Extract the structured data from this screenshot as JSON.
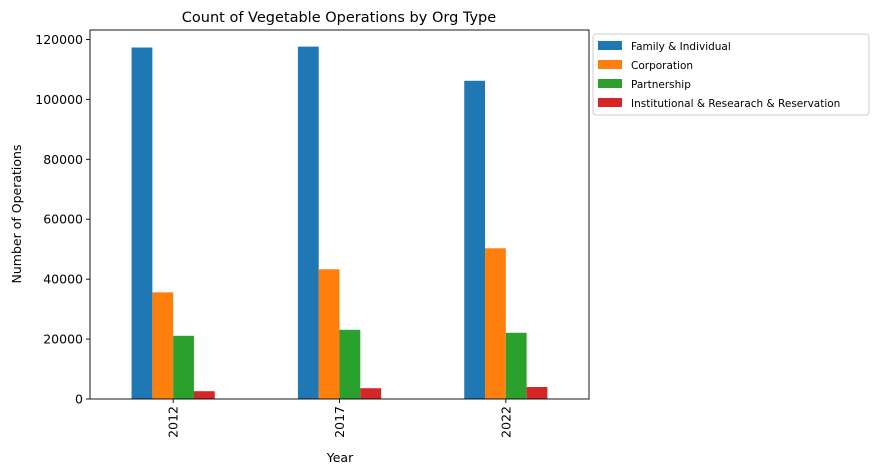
{
  "chart_data": {
    "type": "bar",
    "title": "Count of Vegetable Operations by Org Type",
    "xlabel": "Year",
    "ylabel": "Number of Operations",
    "categories": [
      "2012",
      "2017",
      "2022"
    ],
    "series": [
      {
        "name": "Family & Individual",
        "color": "#1f77b4",
        "values": [
          117300,
          117600,
          106200
        ]
      },
      {
        "name": "Corporation",
        "color": "#ff7f0e",
        "values": [
          35600,
          43300,
          50300
        ]
      },
      {
        "name": "Partnership",
        "color": "#2ca02c",
        "values": [
          21100,
          23100,
          22100
        ]
      },
      {
        "name": "Institutional & Researach & Reservation",
        "color": "#d62728",
        "values": [
          2600,
          3600,
          4000
        ]
      }
    ],
    "ylim": [
      0,
      123150
    ],
    "yticks": [
      0,
      20000,
      40000,
      60000,
      80000,
      100000,
      120000
    ],
    "grid": false,
    "legend": "outside-upper-right",
    "xtick_rotation": 90
  }
}
